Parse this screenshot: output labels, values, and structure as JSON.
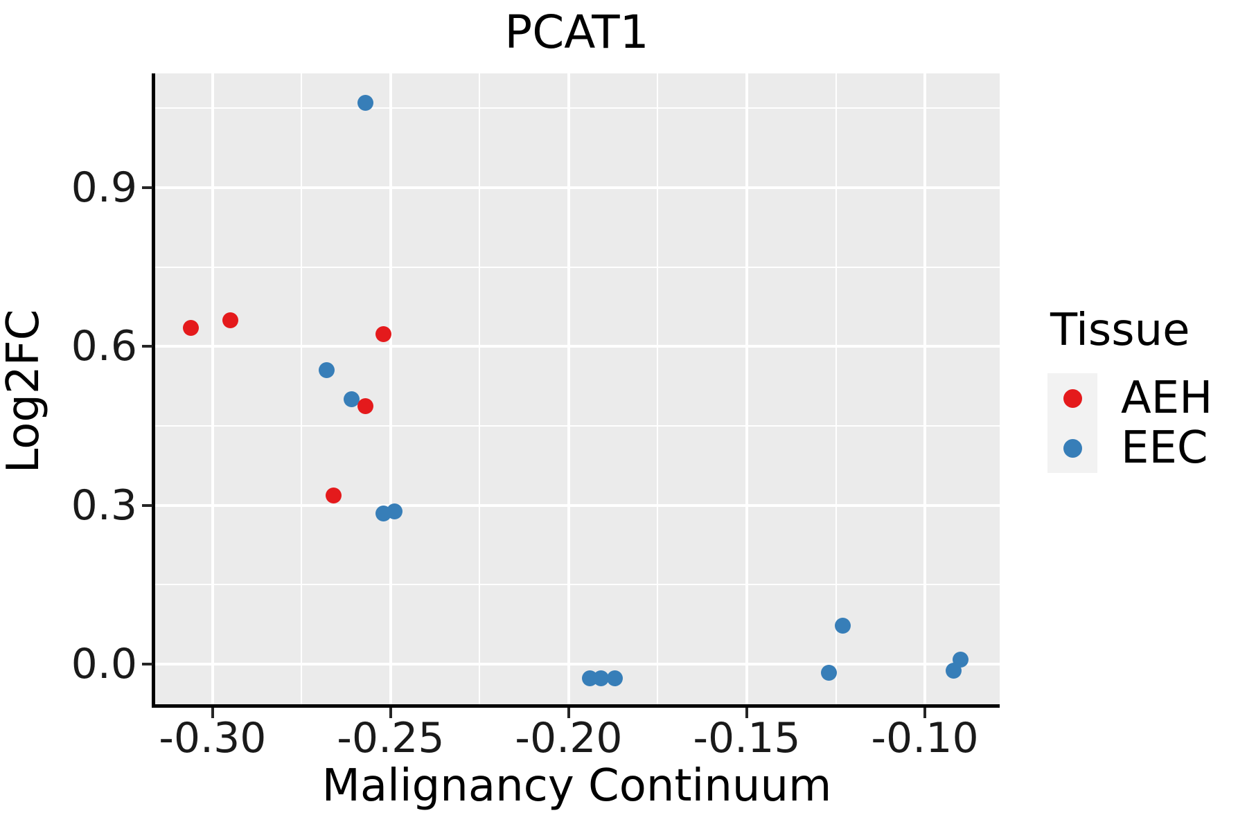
{
  "title": "PCAT1",
  "axes": {
    "x": {
      "label": "Malignancy Continuum",
      "tick_labels": [
        "-0.30",
        "-0.25",
        "-0.20",
        "-0.15",
        "-0.10"
      ],
      "tick_values": [
        -0.3,
        -0.25,
        -0.2,
        -0.15,
        -0.1
      ],
      "minor_values": [
        -0.275,
        -0.225,
        -0.175,
        -0.125
      ]
    },
    "y": {
      "label": "Log2FC",
      "tick_labels": [
        "0.0",
        "0.3",
        "0.6",
        "0.9"
      ],
      "tick_values": [
        0.0,
        0.3,
        0.6,
        0.9
      ],
      "minor_values": [
        0.15,
        0.45,
        0.75,
        1.05
      ]
    }
  },
  "legend": {
    "title": "Tissue",
    "entries": [
      {
        "label": "AEH",
        "color": "#E41A1C"
      },
      {
        "label": "EEC",
        "color": "#377EB8"
      }
    ]
  },
  "colors": {
    "panel_background": "#EBEBEB",
    "gridline": "#FFFFFF",
    "axis_line": "#000000",
    "legend_key_background": "#F2F2F2",
    "aeh_red": "#E41A1C",
    "eec_blue": "#377EB8"
  },
  "chart_data": {
    "type": "scatter",
    "title": "PCAT1",
    "xlabel": "Malignancy Continuum",
    "ylabel": "Log2FC",
    "xlim": [
      -0.3165,
      -0.079
    ],
    "ylim": [
      -0.0785,
      1.116
    ],
    "grid": true,
    "legend_title": "Tissue",
    "legend_position": "right",
    "series": [
      {
        "name": "AEH",
        "color": "#E41A1C",
        "points": [
          [
            -0.306,
            0.635
          ],
          [
            -0.295,
            0.649
          ],
          [
            -0.252,
            0.624
          ],
          [
            -0.257,
            0.488
          ],
          [
            -0.266,
            0.319
          ]
        ]
      },
      {
        "name": "EEC",
        "color": "#377EB8",
        "points": [
          [
            -0.257,
            1.061
          ],
          [
            -0.268,
            0.556
          ],
          [
            -0.261,
            0.5
          ],
          [
            -0.252,
            0.285
          ],
          [
            -0.249,
            0.289
          ],
          [
            -0.194,
            -0.027
          ],
          [
            -0.191,
            -0.027
          ],
          [
            -0.187,
            -0.027
          ],
          [
            -0.127,
            -0.016
          ],
          [
            -0.123,
            0.072
          ],
          [
            -0.092,
            -0.012
          ],
          [
            -0.09,
            0.008
          ]
        ]
      }
    ]
  }
}
